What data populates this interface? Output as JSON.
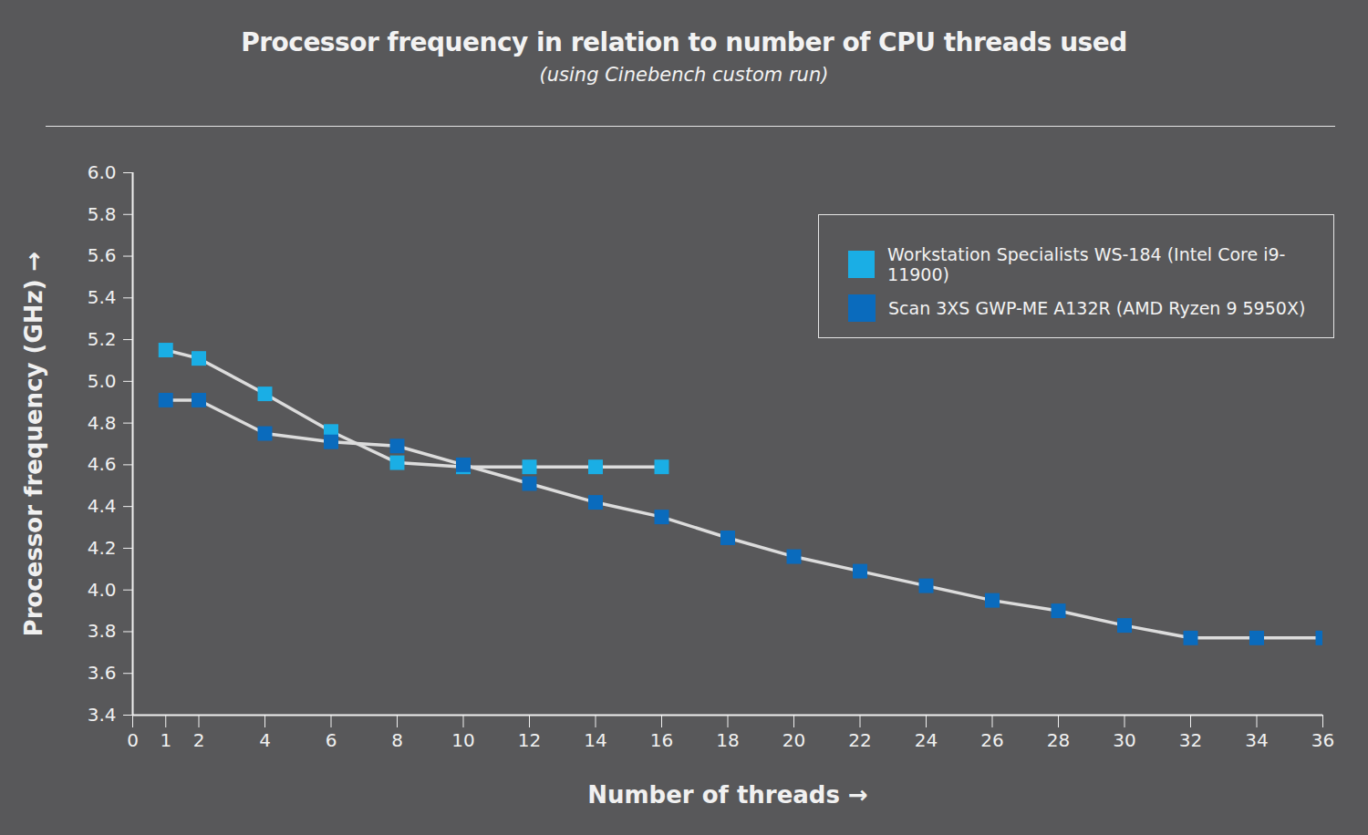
{
  "chart_data": {
    "type": "line",
    "title": "Processor frequency in relation to number of CPU threads used",
    "subtitle": "(using Cinebench custom run)",
    "x_label": "Number of threads",
    "y_label": "Processor frequency (GHz)",
    "xlim": [
      0,
      36
    ],
    "xticks": [
      0,
      1,
      2,
      4,
      6,
      8,
      10,
      12,
      14,
      16,
      18,
      20,
      22,
      24,
      26,
      28,
      30,
      32,
      34,
      36
    ],
    "ylim": [
      3.4,
      6.0
    ],
    "yticks": [
      3.4,
      3.6,
      3.8,
      {
        "value": 4,
        "label": "4.0"
      },
      4.2,
      4.4,
      4.6,
      4.8,
      {
        "value": 5,
        "label": "5.0"
      },
      5.2,
      5.4,
      5.6,
      5.8,
      {
        "value": 6,
        "label": "6.0"
      }
    ],
    "grid": false,
    "legend": "top-right",
    "series": [
      {
        "name": "Workstation Specialists WS-184 (Intel Core i9-11900)",
        "color": "#1aaee5",
        "marker": "square",
        "x": [
          1,
          2,
          4,
          6,
          8,
          10,
          12,
          14,
          16
        ],
        "values": [
          5.15,
          5.11,
          4.94,
          4.76,
          4.61,
          4.59,
          4.59,
          4.59,
          4.59
        ]
      },
      {
        "name": "Scan 3XS GWP-ME A132R (AMD Ryzen 9 5950X)",
        "color": "#0a6bbd",
        "marker": "square",
        "x": [
          1,
          2,
          4,
          6,
          8,
          10,
          12,
          14,
          16,
          18,
          20,
          22,
          24,
          26,
          28,
          30,
          32,
          34,
          36
        ],
        "values": [
          4.91,
          4.91,
          4.75,
          4.71,
          4.69,
          4.6,
          4.51,
          4.42,
          4.35,
          4.25,
          4.16,
          4.09,
          4.02,
          3.95,
          3.9,
          3.83,
          3.77,
          3.77,
          3.77
        ]
      }
    ]
  }
}
